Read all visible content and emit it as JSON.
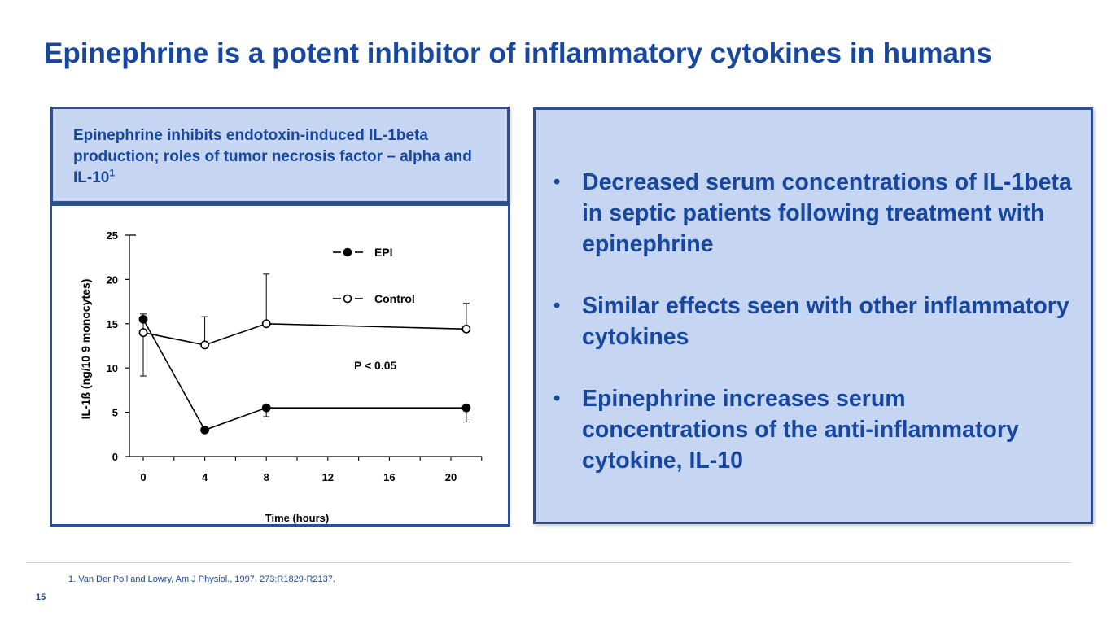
{
  "slide": {
    "title": "Epinephrine is a potent inhibitor of inflammatory cytokines in humans",
    "left_header": {
      "text": "Epinephrine inhibits endotoxin-induced IL-1beta production; roles of tumor necrosis factor – alpha and IL-10",
      "superscript": "1"
    },
    "bullets": [
      "Decreased serum concentrations of IL-1beta in septic patients following treatment with epinephrine",
      "Similar effects seen with other inflammatory cytokines",
      "Epinephrine increases serum concentrations of the anti-inflammatory cytokine, IL-10"
    ],
    "bullet_symbol": "•",
    "footnote": "1. Van Der Poll and Lowry, Am J Physiol., 1997, 273:R1829-R2137.",
    "page_number": "15",
    "colors": {
      "title": "#17479e",
      "box_fill": "#c6d6f2",
      "box_border": "#2e4f8f"
    }
  },
  "chart_data": {
    "type": "line",
    "xlabel": "Time (hours)",
    "ylabel": "IL-1ß (ng/10 9 monocytes)",
    "xlim": [
      0,
      22
    ],
    "ylim": [
      0,
      25
    ],
    "x_ticks": [
      0,
      4,
      8,
      12,
      16,
      20
    ],
    "y_ticks": [
      0,
      5,
      10,
      15,
      20,
      25
    ],
    "annotation": "P < 0.05",
    "grid": false,
    "legend_position": "top-right",
    "series": [
      {
        "name": "EPI",
        "marker": "filled",
        "x": [
          0,
          4,
          8,
          21
        ],
        "y": [
          15.5,
          3.0,
          5.5,
          5.5
        ],
        "error_upper": [
          0.6,
          0,
          0,
          0
        ],
        "error_lower": [
          0,
          0,
          1.0,
          1.6
        ]
      },
      {
        "name": "Control",
        "marker": "open",
        "x": [
          0,
          4,
          8,
          21
        ],
        "y": [
          14.0,
          12.6,
          15.0,
          14.4
        ],
        "error_upper": [
          1.8,
          3.2,
          5.6,
          2.9
        ],
        "error_lower": [
          4.9,
          0,
          0,
          0
        ]
      }
    ]
  }
}
